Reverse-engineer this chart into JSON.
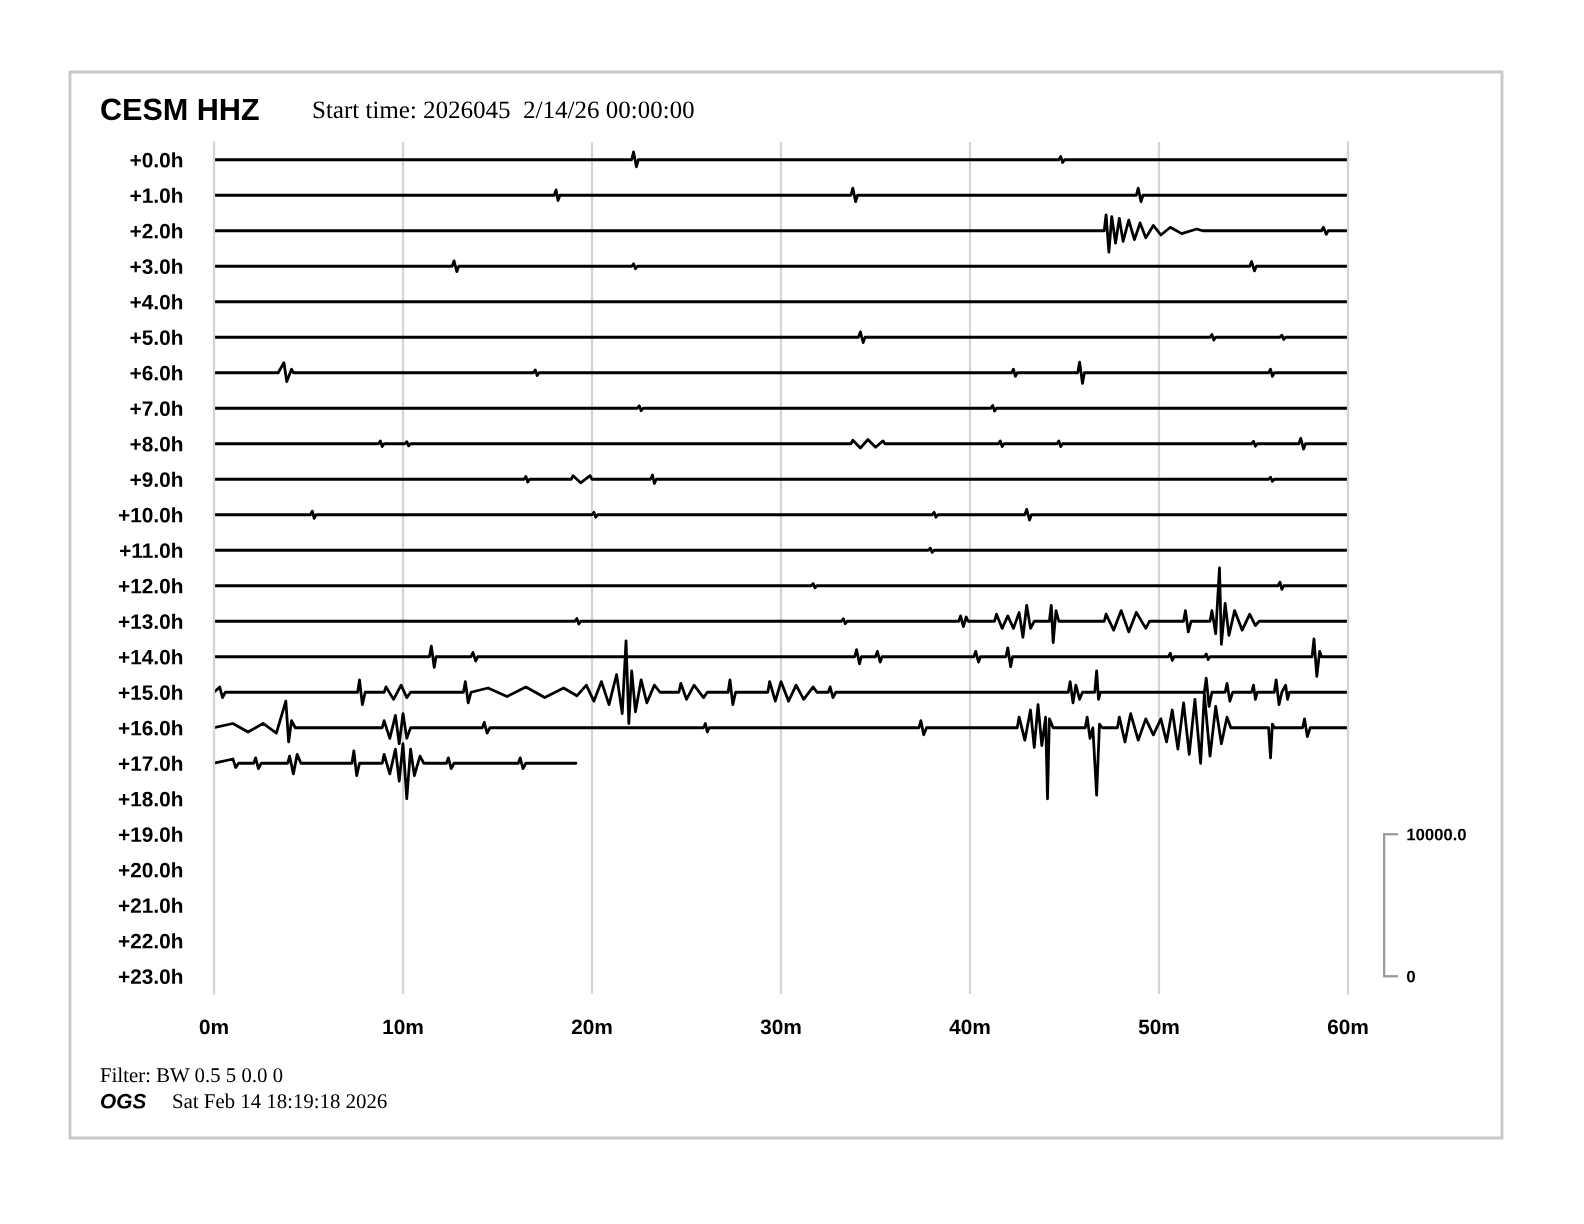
{
  "chart_data": {
    "type": "line",
    "title": "CESM HHZ",
    "subtitle": "Start time: 2026045  2/14/26 00:00:00",
    "annotations": [
      "Filter: BW 0.5 5 0.0 0",
      "OGS",
      "Sat Feb 14 18:19:18 2026"
    ],
    "xlim": [
      0,
      60
    ],
    "xticks": [
      {
        "value": 0,
        "label": "0m"
      },
      {
        "value": 10,
        "label": "10m"
      },
      {
        "value": 20,
        "label": "20m"
      },
      {
        "value": 30,
        "label": "30m"
      },
      {
        "value": 40,
        "label": "40m"
      },
      {
        "value": 50,
        "label": "50m"
      },
      {
        "value": 60,
        "label": "60m"
      }
    ],
    "ylim": [
      23.5,
      -0.5
    ],
    "yticks": [
      {
        "value": 0,
        "label": "+0.0h"
      },
      {
        "value": 1,
        "label": "+1.0h"
      },
      {
        "value": 2,
        "label": "+2.0h"
      },
      {
        "value": 3,
        "label": "+3.0h"
      },
      {
        "value": 4,
        "label": "+4.0h"
      },
      {
        "value": 5,
        "label": "+5.0h"
      },
      {
        "value": 6,
        "label": "+6.0h"
      },
      {
        "value": 7,
        "label": "+7.0h"
      },
      {
        "value": 8,
        "label": "+8.0h"
      },
      {
        "value": 9,
        "label": "+9.0h"
      },
      {
        "value": 10,
        "label": "+10.0h"
      },
      {
        "value": 11,
        "label": "+11.0h"
      },
      {
        "value": 12,
        "label": "+12.0h"
      },
      {
        "value": 13,
        "label": "+13.0h"
      },
      {
        "value": 14,
        "label": "+14.0h"
      },
      {
        "value": 15,
        "label": "+15.0h"
      },
      {
        "value": 16,
        "label": "+16.0h"
      },
      {
        "value": 17,
        "label": "+17.0h"
      },
      {
        "value": 18,
        "label": "+18.0h"
      },
      {
        "value": 19,
        "label": "+19.0h"
      },
      {
        "value": 20,
        "label": "+20.0h"
      },
      {
        "value": 21,
        "label": "+21.0h"
      },
      {
        "value": 22,
        "label": "+22.0h"
      },
      {
        "value": 23,
        "label": "+23.0h"
      }
    ],
    "y2lim": [
      -1250,
      58750
    ],
    "y2ticks": [
      0,
      {
        "value": 10000,
        "label": "10000.0"
      }
    ],
    "grid": "x",
    "series": [
      {
        "color": "#000000",
        "x": [
          0,
          22.1,
          22.2,
          22.35,
          22.45,
          44.7,
          44.8,
          44.9,
          45,
          60
        ],
        "values": [
          0,
          0,
          -0.22,
          0.2,
          0,
          0,
          -0.09,
          0.08,
          0,
          0
        ]
      },
      {
        "color": "#000000",
        "x": [
          0,
          18,
          18.1,
          18.2,
          18.3,
          33.7,
          33.8,
          33.95,
          34.05,
          48.8,
          48.9,
          49.05,
          49.15,
          60
        ],
        "values": [
          1,
          1,
          0.85,
          1.15,
          1,
          1,
          0.8,
          1.18,
          1,
          1,
          0.8,
          1.18,
          1,
          1
        ]
      },
      {
        "color": "#000000",
        "x": [
          0,
          47.1,
          47.2,
          47.35,
          47.5,
          47.7,
          47.9,
          48.1,
          48.4,
          48.7,
          49,
          49.3,
          49.7,
          50.1,
          50.6,
          51.2,
          52,
          52.3,
          58.6,
          58.7,
          58.85,
          58.95,
          60
        ],
        "values": [
          2,
          2,
          1.55,
          2.6,
          1.6,
          2.35,
          1.65,
          2.3,
          1.7,
          2.25,
          1.78,
          2.2,
          1.85,
          2.12,
          1.9,
          2.08,
          1.95,
          2,
          2,
          1.9,
          2.1,
          2,
          2
        ]
      },
      {
        "color": "#000000",
        "x": [
          0,
          12.6,
          12.7,
          12.85,
          12.95,
          22.1,
          22.2,
          22.3,
          22.4,
          54.8,
          54.9,
          55.05,
          55.15,
          60
        ],
        "values": [
          3,
          3,
          2.85,
          3.15,
          3,
          3,
          2.93,
          3.07,
          3,
          3,
          2.87,
          3.13,
          3,
          3
        ]
      },
      {
        "color": "#000000",
        "x": [
          0,
          60
        ],
        "values": [
          4,
          4
        ]
      },
      {
        "color": "#000000",
        "x": [
          0,
          34.1,
          34.2,
          34.35,
          34.45,
          52.7,
          52.8,
          52.9,
          53,
          56.4,
          56.5,
          56.6,
          56.7,
          60
        ],
        "values": [
          5,
          5,
          4.85,
          5.15,
          5,
          5,
          4.92,
          5.08,
          5,
          5,
          4.94,
          5.06,
          5,
          5
        ]
      },
      {
        "color": "#000000",
        "x": [
          0,
          3.4,
          3.5,
          3.7,
          3.85,
          4.1,
          4.2,
          16.9,
          17,
          17.1,
          17.2,
          42.2,
          42.3,
          42.4,
          42.5,
          45.7,
          45.8,
          45.95,
          46.05,
          55.8,
          55.9,
          56,
          56.1,
          60
        ],
        "values": [
          6,
          6,
          5.9,
          5.72,
          6.25,
          5.9,
          6,
          6,
          5.92,
          6.08,
          6,
          6,
          5.9,
          6.1,
          6,
          6,
          5.7,
          6.3,
          6,
          6,
          5.9,
          6.1,
          6,
          6
        ]
      },
      {
        "color": "#000000",
        "x": [
          0,
          22.4,
          22.5,
          22.6,
          22.7,
          41.1,
          41.2,
          41.3,
          41.4,
          60
        ],
        "values": [
          7,
          7,
          6.93,
          7.07,
          7,
          7,
          6.92,
          7.08,
          7,
          7
        ]
      },
      {
        "color": "#000000",
        "x": [
          0,
          8.7,
          8.8,
          8.9,
          9,
          10.1,
          10.2,
          10.3,
          10.4,
          33.7,
          33.8,
          34.2,
          34.6,
          35,
          35.4,
          35.5,
          41.5,
          41.6,
          41.7,
          41.8,
          44.6,
          44.7,
          44.8,
          44.9,
          54.9,
          55,
          55.1,
          55.2,
          57.4,
          57.5,
          57.65,
          57.75,
          60
        ],
        "values": [
          8,
          8,
          7.92,
          8.08,
          8,
          8,
          7.94,
          8.06,
          8,
          8,
          7.9,
          8.12,
          7.88,
          8.1,
          7.92,
          8,
          8,
          7.92,
          8.08,
          8,
          8,
          7.92,
          8.08,
          8,
          8,
          7.93,
          8.07,
          8,
          8,
          7.85,
          8.15,
          8,
          8
        ]
      },
      {
        "color": "#000000",
        "x": [
          0,
          16.4,
          16.5,
          16.6,
          16.7,
          18.9,
          19,
          19.4,
          19.9,
          20,
          23.1,
          23.2,
          23.3,
          23.4,
          55.8,
          55.9,
          56,
          56.1,
          60
        ],
        "values": [
          9,
          9,
          8.92,
          9.08,
          9,
          9,
          8.9,
          9.1,
          8.9,
          9,
          9,
          8.88,
          9.12,
          9,
          9,
          8.94,
          9.06,
          9,
          9
        ]
      },
      {
        "color": "#000000",
        "x": [
          0,
          5.1,
          5.2,
          5.3,
          5.4,
          20,
          20.1,
          20.2,
          20.3,
          38,
          38.1,
          38.2,
          38.3,
          42.9,
          43,
          43.15,
          43.25,
          60
        ],
        "values": [
          10,
          10,
          9.9,
          10.1,
          10,
          10,
          9.93,
          10.07,
          10,
          10,
          9.93,
          10.07,
          10,
          10,
          9.85,
          10.15,
          10,
          10
        ]
      },
      {
        "color": "#000000",
        "x": [
          0,
          37.8,
          37.9,
          38,
          38.1,
          60
        ],
        "values": [
          11,
          11,
          10.94,
          11.06,
          11,
          11
        ]
      },
      {
        "color": "#000000",
        "x": [
          0,
          31.6,
          31.7,
          31.8,
          31.9,
          56.3,
          56.4,
          56.5,
          56.6,
          60
        ],
        "values": [
          12,
          12,
          11.94,
          12.06,
          12,
          12,
          11.9,
          12.1,
          12,
          12
        ]
      },
      {
        "color": "#000000",
        "x": [
          0,
          19.1,
          19.2,
          19.3,
          19.4,
          33.2,
          33.3,
          33.4,
          33.5,
          39.4,
          39.5,
          39.65,
          39.8,
          39.9,
          41.3,
          41.4,
          41.7,
          42,
          42.3,
          42.6,
          42.8,
          43,
          43.2,
          43.4,
          44.2,
          44.3,
          44.4,
          44.55,
          44.7,
          47.1,
          47.2,
          47.6,
          48,
          48.4,
          48.8,
          49.3,
          49.5,
          51.3,
          51.4,
          51.55,
          51.7,
          52.7,
          52.8,
          53,
          53.2,
          53.3,
          53.5,
          53.7,
          54,
          54.4,
          54.8,
          55.1,
          55.3,
          60
        ],
        "values": [
          13,
          13,
          12.92,
          13.08,
          13,
          13,
          12.93,
          13.07,
          13,
          13,
          12.85,
          13.15,
          12.88,
          13,
          13,
          12.8,
          13.2,
          12.85,
          13.2,
          12.75,
          13.45,
          12.55,
          13.2,
          13,
          13,
          12.55,
          13.6,
          12.7,
          13,
          13,
          12.8,
          13.25,
          12.7,
          13.3,
          12.75,
          13.2,
          13,
          13,
          12.7,
          13.3,
          13,
          13,
          12.7,
          13.35,
          11.5,
          13.65,
          12.5,
          13.4,
          12.7,
          13.25,
          12.8,
          13.12,
          13,
          13
        ]
      },
      {
        "color": "#000000",
        "x": [
          0,
          11.4,
          11.5,
          11.65,
          11.75,
          13.6,
          13.7,
          13.85,
          13.95,
          33.9,
          34,
          34.15,
          34.25,
          35,
          35.1,
          35.25,
          35.35,
          40.2,
          40.3,
          40.45,
          40.55,
          41.9,
          42,
          42.15,
          42.25,
          50.5,
          50.6,
          50.7,
          50.8,
          52.4,
          52.5,
          52.6,
          52.7,
          58.1,
          58.2,
          58.35,
          58.5,
          58.6,
          60
        ],
        "values": [
          14,
          14,
          13.7,
          14.3,
          14,
          14,
          13.88,
          14.12,
          14,
          14,
          13.8,
          14.2,
          14,
          14,
          13.85,
          14.15,
          14,
          14,
          13.85,
          14.15,
          14,
          14,
          13.75,
          14.28,
          14,
          14,
          13.9,
          14.1,
          14,
          14,
          13.92,
          14.08,
          14,
          14,
          13.5,
          14.55,
          13.85,
          14,
          14
        ]
      },
      {
        "color": "#000000",
        "x": [
          0,
          0.3,
          0.45,
          0.6,
          7.6,
          7.7,
          7.85,
          8,
          9,
          9.1,
          9.5,
          9.9,
          10.2,
          10.4,
          13.2,
          13.3,
          13.45,
          13.6,
          14.5,
          15.5,
          16.5,
          17.5,
          18.5,
          19.2,
          19.7,
          20.1,
          20.5,
          20.9,
          21.3,
          21.6,
          21.8,
          21.95,
          22.1,
          22.3,
          22.6,
          22.9,
          23.3,
          23.6,
          24.6,
          24.7,
          25,
          25.4,
          25.9,
          26.1,
          27.2,
          27.3,
          27.45,
          27.6,
          29.3,
          29.4,
          29.7,
          30,
          30.4,
          30.8,
          31.2,
          31.7,
          31.9,
          32.5,
          32.6,
          32.75,
          32.9,
          45.2,
          45.3,
          45.45,
          45.6,
          45.8,
          45.95,
          46.6,
          46.7,
          46.8,
          46.9,
          52.4,
          52.5,
          52.65,
          52.8,
          53.5,
          53.6,
          53.75,
          53.9,
          54.9,
          55,
          55.1,
          55.2,
          56.1,
          56.2,
          56.35,
          56.5,
          56.7,
          56.8,
          56.9,
          60
        ],
        "values": [
          15,
          14.85,
          15.15,
          15,
          15,
          14.65,
          15.35,
          15,
          15,
          14.85,
          15.2,
          14.8,
          15.15,
          15,
          15,
          14.7,
          15.3,
          15,
          14.88,
          15.12,
          14.85,
          15.15,
          14.88,
          15.1,
          14.8,
          15.25,
          14.7,
          15.35,
          14.5,
          15.6,
          13.55,
          15.88,
          14.4,
          15.55,
          14.65,
          15.3,
          14.8,
          15,
          15,
          14.75,
          15.2,
          14.8,
          15.15,
          15,
          15,
          14.65,
          15.35,
          15,
          15,
          14.7,
          15.25,
          14.7,
          15.25,
          14.8,
          15.2,
          14.85,
          15,
          15,
          14.85,
          15.15,
          15,
          15,
          14.7,
          15.3,
          14.8,
          15.2,
          15,
          15,
          14.4,
          15.2,
          15,
          15,
          14.6,
          15.4,
          15,
          15,
          14.75,
          15.25,
          15,
          15,
          14.8,
          15.2,
          15,
          15,
          14.65,
          15.35,
          15,
          14.8,
          15.2,
          15,
          15
        ]
      },
      {
        "color": "#000000",
        "x": [
          0,
          1,
          1.8,
          2.6,
          3.3,
          3.8,
          3.95,
          4.1,
          4.3,
          8.9,
          9,
          9.3,
          9.6,
          9.8,
          10,
          10.2,
          10.4,
          14.2,
          14.3,
          14.45,
          14.6,
          25.9,
          26,
          26.1,
          26.2,
          37.3,
          37.4,
          37.55,
          37.7,
          42.5,
          42.6,
          42.9,
          43.2,
          43.4,
          43.6,
          43.8,
          44,
          44.1,
          44.2,
          44.4,
          46.1,
          46.2,
          46.35,
          46.5,
          46.7,
          46.85,
          47,
          47.8,
          47.9,
          48.2,
          48.5,
          48.9,
          49.3,
          49.7,
          50.1,
          50.4,
          50.7,
          51,
          51.3,
          51.6,
          51.9,
          52.2,
          52.4,
          52.7,
          53,
          53.3,
          53.6,
          53.8,
          55.8,
          55.9,
          56,
          56.1,
          57.6,
          57.7,
          57.85,
          58,
          60
        ],
        "values": [
          16,
          15.88,
          16.12,
          15.88,
          16.15,
          15.25,
          16.4,
          15.8,
          16,
          16,
          15.8,
          16.3,
          15.65,
          16.45,
          15.6,
          16.3,
          16,
          16,
          15.85,
          16.15,
          16,
          16,
          15.88,
          16.12,
          16,
          16,
          15.8,
          16.2,
          16,
          16,
          15.7,
          16.35,
          15.5,
          16.55,
          15.35,
          16.5,
          15.7,
          18,
          15.75,
          16,
          16,
          15.7,
          16.3,
          16,
          17.9,
          15.9,
          16,
          16,
          15.7,
          16.4,
          15.6,
          16.35,
          15.75,
          16.2,
          15.75,
          16.4,
          15.5,
          16.6,
          15.3,
          16.75,
          15.2,
          17,
          15.05,
          16.8,
          15.4,
          16.45,
          15.7,
          16,
          16,
          16.85,
          15.9,
          16,
          16,
          15.75,
          16.25,
          16,
          16
        ]
      },
      {
        "color": "#000000",
        "x": [
          0,
          1,
          1.15,
          1.3,
          2.1,
          2.2,
          2.35,
          2.5,
          3.9,
          4,
          4.2,
          4.4,
          4.6,
          7.3,
          7.4,
          7.55,
          7.7,
          8.9,
          9,
          9.3,
          9.6,
          9.8,
          10,
          10.2,
          10.4,
          10.6,
          10.9,
          11.1,
          12.3,
          12.4,
          12.55,
          12.7,
          16.1,
          16.2,
          16.35,
          16.5,
          19.15
        ],
        "values": [
          17,
          16.88,
          17.12,
          17,
          17,
          16.85,
          17.15,
          17,
          17,
          16.8,
          17.3,
          16.75,
          17,
          17,
          16.65,
          17.35,
          17,
          17,
          16.75,
          17.3,
          16.6,
          17.5,
          16.45,
          18,
          16.6,
          17.35,
          16.8,
          17,
          17,
          16.85,
          17.15,
          17,
          17,
          16.85,
          17.15,
          17,
          17
        ]
      }
    ]
  }
}
